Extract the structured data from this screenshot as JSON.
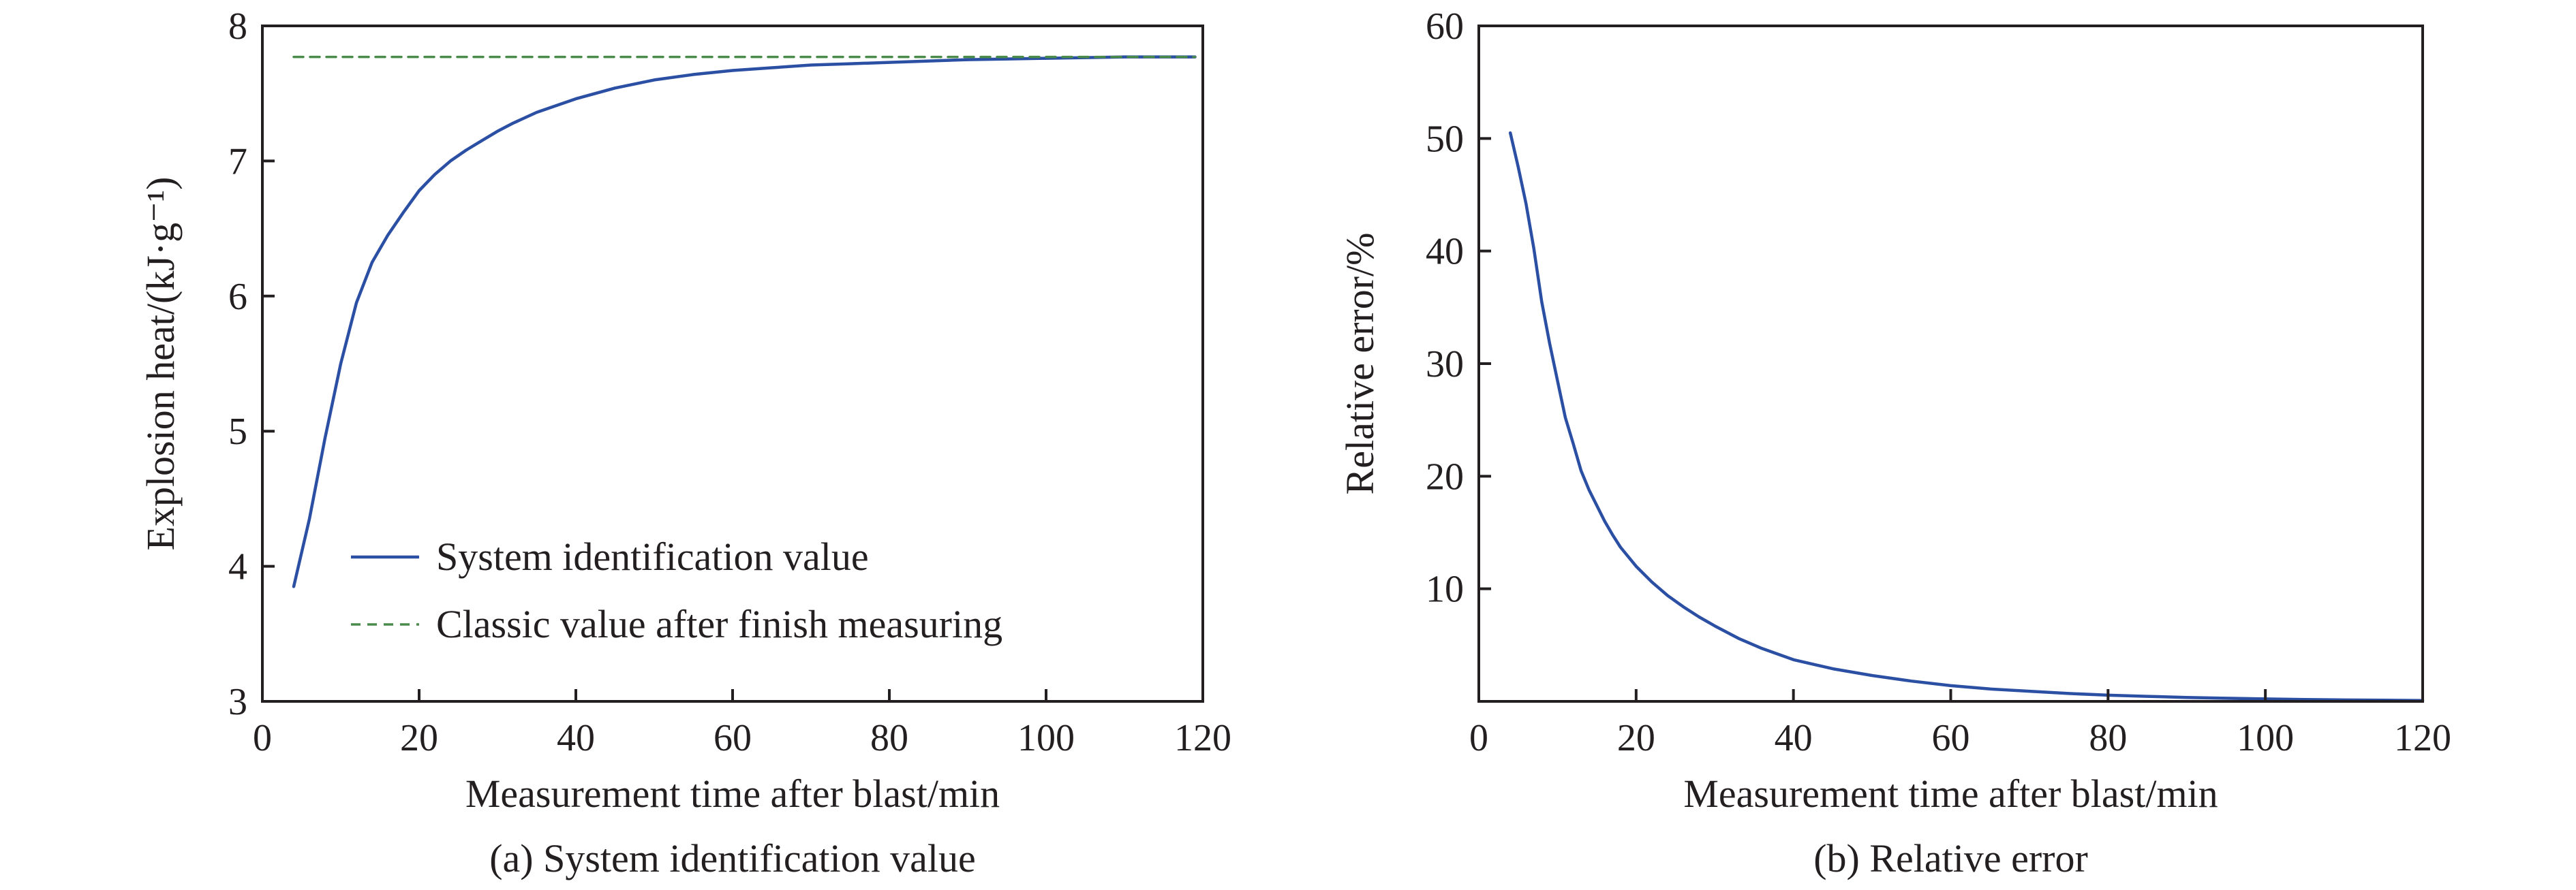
{
  "chart_data": [
    {
      "type": "line",
      "caption": "(a) System identification value",
      "xlabel": "Measurement time after blast/min",
      "ylabel": "Explosion heat/(kJ·g⁻¹)",
      "xlim": [
        0,
        120
      ],
      "ylim": [
        3,
        8
      ],
      "xticks": [
        "0",
        "20",
        "40",
        "60",
        "80",
        "100",
        "120"
      ],
      "yticks": [
        "3",
        "4",
        "5",
        "6",
        "7",
        "8"
      ],
      "grid": false,
      "legend_position": "bottom-left",
      "series": [
        {
          "name": "System identification value",
          "style": "solid",
          "color": "#2b4fa3",
          "x": [
            4,
            6,
            8,
            10,
            12,
            14,
            16,
            18,
            20,
            22,
            24,
            26,
            28,
            30,
            32,
            35,
            40,
            45,
            50,
            55,
            60,
            65,
            70,
            75,
            80,
            85,
            90,
            95,
            100,
            105,
            110,
            115,
            119
          ],
          "y": [
            3.85,
            4.35,
            4.95,
            5.5,
            5.95,
            6.25,
            6.45,
            6.62,
            6.78,
            6.9,
            7.0,
            7.08,
            7.15,
            7.22,
            7.28,
            7.36,
            7.46,
            7.54,
            7.6,
            7.64,
            7.67,
            7.69,
            7.71,
            7.72,
            7.73,
            7.74,
            7.75,
            7.755,
            7.76,
            7.765,
            7.77,
            7.77,
            7.77
          ]
        },
        {
          "name": "Classic value after finish measuring",
          "style": "dashed",
          "color": "#4a8a4a",
          "x": [
            4,
            119
          ],
          "y": [
            7.77,
            7.77
          ]
        }
      ]
    },
    {
      "type": "line",
      "caption": "(b) Relative error",
      "xlabel": "Measurement time after blast/min",
      "ylabel": "Relative error/%",
      "xlim": [
        0,
        120
      ],
      "ylim": [
        0,
        60
      ],
      "xticks": [
        "0",
        "20",
        "40",
        "60",
        "80",
        "100",
        "120"
      ],
      "yticks": [
        "10",
        "20",
        "30",
        "40",
        "50",
        "60"
      ],
      "grid": false,
      "series": [
        {
          "style": "solid",
          "color": "#2b4fa3",
          "x": [
            4,
            5,
            6,
            7,
            8,
            9,
            10,
            11,
            12,
            13,
            14,
            15,
            16,
            17,
            18,
            20,
            22,
            24,
            26,
            28,
            30,
            33,
            36,
            40,
            45,
            50,
            55,
            60,
            65,
            70,
            75,
            80,
            85,
            90,
            95,
            100,
            105,
            110,
            115,
            120
          ],
          "y": [
            50.5,
            47.5,
            44.2,
            40.2,
            35.5,
            31.8,
            28.5,
            25.2,
            22.9,
            20.5,
            18.8,
            17.4,
            16.0,
            14.8,
            13.7,
            12.0,
            10.6,
            9.4,
            8.4,
            7.5,
            6.7,
            5.6,
            4.7,
            3.7,
            2.9,
            2.3,
            1.8,
            1.4,
            1.1,
            0.9,
            0.7,
            0.55,
            0.45,
            0.35,
            0.28,
            0.22,
            0.17,
            0.13,
            0.1,
            0.08
          ]
        }
      ]
    }
  ]
}
